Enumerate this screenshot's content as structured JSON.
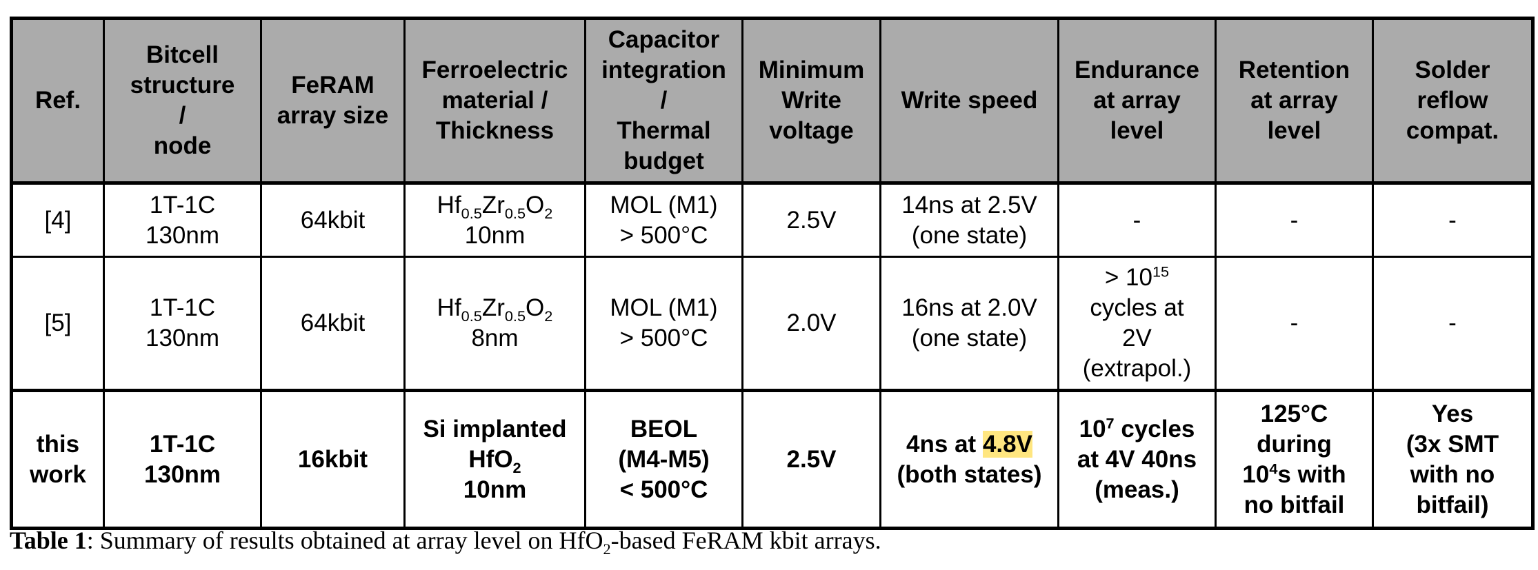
{
  "table": {
    "headers": [
      [
        "Ref."
      ],
      [
        "Bitcell",
        "structure",
        "/",
        "node"
      ],
      [
        "FeRAM",
        "array size"
      ],
      [
        "Ferroelectric",
        "material /",
        "Thickness"
      ],
      [
        "Capacitor",
        "integration",
        "/",
        "Thermal",
        "budget"
      ],
      [
        "Minimum",
        "Write",
        "voltage"
      ],
      [
        "Write speed"
      ],
      [
        "Endurance",
        "at array",
        "level"
      ],
      [
        "Retention",
        "at array",
        "level"
      ],
      [
        "Solder",
        "reflow",
        "compat."
      ]
    ],
    "rows": [
      {
        "ref": "[4]",
        "bitcell": [
          "1T-1C",
          "130nm"
        ],
        "array_size": "64kbit",
        "material": {
          "hf": "Hf",
          "hf_sub": "0.5",
          "zr": "Zr",
          "zr_sub": "0.5",
          "o": "O",
          "o_sub": "2",
          "thickness": "10nm"
        },
        "capacitor": [
          "MOL (M1)",
          "> 500°C"
        ],
        "min_voltage": "2.5V",
        "write_speed": [
          "14ns at 2.5V",
          "(one state)"
        ],
        "endurance": "-",
        "retention": "-",
        "solder": "-"
      },
      {
        "ref": "[5]",
        "bitcell": [
          "1T-1C",
          "130nm"
        ],
        "array_size": "64kbit",
        "material": {
          "hf": "Hf",
          "hf_sub": "0.5",
          "zr": "Zr",
          "zr_sub": "0.5",
          "o": "O",
          "o_sub": "2",
          "thickness": "8nm"
        },
        "capacitor": [
          "MOL (M1)",
          "> 500°C"
        ],
        "min_voltage": "2.0V",
        "write_speed": [
          "16ns at 2.0V",
          "(one state)"
        ],
        "endurance": {
          "pre": "> 10",
          "sup": "15",
          "lines": [
            "cycles at",
            "2V",
            "(extrapol.)"
          ]
        },
        "retention": "-",
        "solder": "-"
      },
      {
        "ref": [
          "this",
          "work"
        ],
        "bitcell": [
          "1T-1C",
          "130nm"
        ],
        "array_size": "16kbit",
        "material": {
          "line1": "Si implanted",
          "hfo": "HfO",
          "hfo_sub": "2",
          "thickness": "10nm"
        },
        "capacitor": [
          "BEOL",
          "(M4-M5)",
          "< 500°C"
        ],
        "min_voltage": "2.5V",
        "write_speed": {
          "pre": "4ns at ",
          "highlight": "4.8V",
          "line2": "(both states)"
        },
        "endurance": {
          "pre": "10",
          "sup": "7",
          "post": " cycles",
          "lines": [
            "at 4V 40ns",
            "(meas.)"
          ]
        },
        "retention": {
          "line1": "125°C",
          "line2": "during",
          "pre": "10",
          "sup": "4",
          "post": "s with",
          "line4": "no bitfail"
        },
        "solder": [
          "Yes",
          "(3x SMT",
          "with no",
          "bitfail)"
        ]
      }
    ]
  },
  "caption": {
    "label": "Table 1",
    "text_pre": ": Summary of results obtained at array level on HfO",
    "sub": "2",
    "text_post": "-based FeRAM kbit arrays."
  }
}
